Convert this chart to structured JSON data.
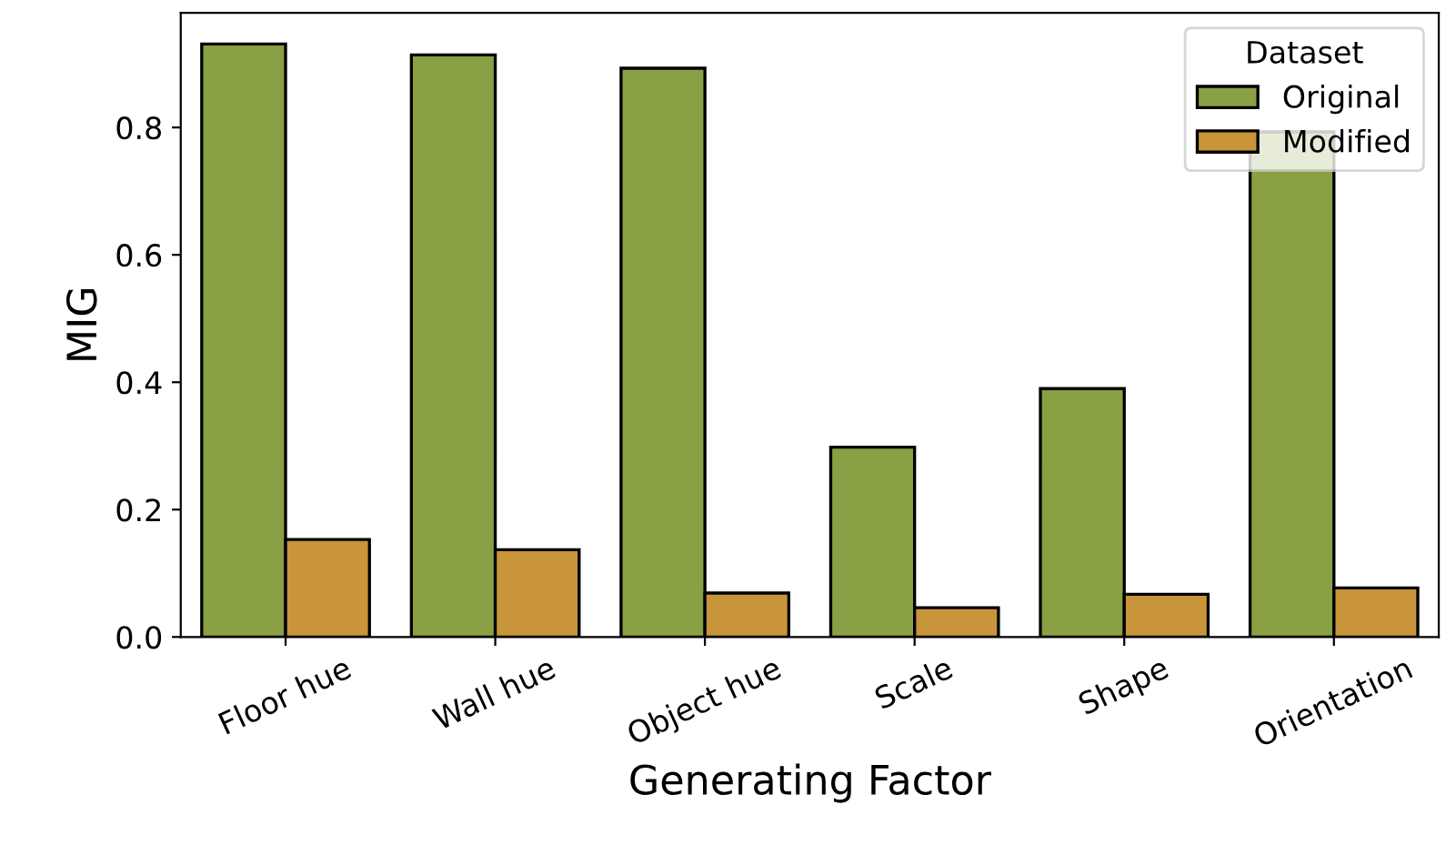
{
  "chart_data": {
    "type": "bar",
    "xlabel": "Generating Factor",
    "ylabel": "MIG",
    "legend_title": "Dataset",
    "categories": [
      "Floor hue",
      "Wall hue",
      "Object hue",
      "Scale",
      "Shape",
      "Orientation"
    ],
    "series": [
      {
        "name": "Original",
        "color": "#89a044",
        "values": [
          0.931,
          0.914,
          0.893,
          0.298,
          0.39,
          0.793
        ]
      },
      {
        "name": "Modified",
        "color": "#c8953b",
        "values": [
          0.153,
          0.137,
          0.069,
          0.046,
          0.067,
          0.077
        ]
      }
    ],
    "ylim": [
      0,
      0.98
    ],
    "yticks": [
      {
        "value": 0,
        "label": "0.0"
      },
      0.2,
      0.4,
      0.6,
      0.8
    ],
    "grid": false,
    "legend": "top right"
  }
}
